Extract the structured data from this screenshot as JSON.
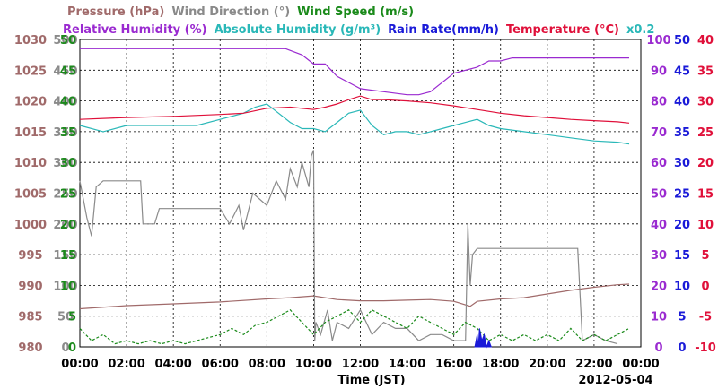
{
  "chart_data": {
    "type": "line",
    "header": {
      "line1": [
        {
          "text": "Pressure (hPa)",
          "color": "#a06a6a"
        },
        {
          "text": "Wind Direction (°)",
          "color": "#8a8a8a"
        },
        {
          "text": "Wind Speed (m/s)",
          "color": "#1a8a1a"
        }
      ],
      "line2": [
        {
          "text": "Relative Humidity (%)",
          "color": "#9a2ad0"
        },
        {
          "text": "Absolute Humidity (g/m³)",
          "color": "#2ab8b8"
        },
        {
          "text": "Rain Rate(mm/h)",
          "color": "#1a1ad8"
        },
        {
          "text": "Temperature (°C)",
          "color": "#e0103a"
        },
        {
          "text": "x0.2",
          "color": "#2ab8b8"
        }
      ]
    },
    "xlabel": "Time (JST)",
    "date": "2012-05-04",
    "x_ticks": [
      "00:00",
      "02:00",
      "04:00",
      "06:00",
      "08:00",
      "10:00",
      "12:00",
      "14:00",
      "16:00",
      "18:00",
      "20:00",
      "22:00",
      "00:00"
    ],
    "x_range_hours": [
      0,
      24
    ],
    "grid": true,
    "axes": {
      "pressure": {
        "color": "#a06a6a",
        "range": [
          980,
          1030
        ],
        "ticks": [
          "1030",
          "1025",
          "1020",
          "1015",
          "1010",
          "1005",
          "1000",
          "995",
          "990",
          "985",
          "980"
        ]
      },
      "wind_dir": {
        "color": "#8a8a8a",
        "range": [
          0,
          500
        ],
        "ticks": [
          "500",
          "450",
          "400",
          "350",
          "300",
          "250",
          "200",
          "150",
          "100",
          "50",
          "0"
        ]
      },
      "wind_speed": {
        "color": "#1a8a1a",
        "range": [
          0,
          50
        ],
        "ticks": [
          "50",
          "45",
          "40",
          "35",
          "30",
          "25",
          "20",
          "15",
          "10",
          "5",
          "0"
        ]
      },
      "rh": {
        "color": "#9a2ad0",
        "range": [
          0,
          100
        ],
        "ticks": [
          "100",
          "90",
          "80",
          "70",
          "60",
          "50",
          "40",
          "30",
          "20",
          "10",
          "0"
        ]
      },
      "rain": {
        "color": "#1a1ad8",
        "range": [
          0,
          50
        ],
        "ticks": [
          "50",
          "45",
          "40",
          "35",
          "30",
          "25",
          "20",
          "15",
          "10",
          "5",
          "0"
        ]
      },
      "temp": {
        "color": "#e0103a",
        "range": [
          -10,
          40
        ],
        "ticks": [
          "40",
          "35",
          "30",
          "25",
          "20",
          "15",
          "10",
          "5",
          "0",
          "-5",
          "-10"
        ]
      }
    },
    "series": [
      {
        "name": "Relative Humidity",
        "axis": "rh",
        "color": "#9a2ad0",
        "x": [
          0,
          8.8,
          9.5,
          10,
          10.5,
          11,
          11.5,
          12,
          13,
          14,
          14.5,
          15,
          16,
          17,
          17.5,
          18,
          18.5,
          19,
          20,
          21,
          22,
          23.5
        ],
        "y": [
          97,
          97,
          95,
          92,
          92,
          88,
          86,
          84,
          83,
          82,
          82,
          83,
          89,
          91,
          93,
          93,
          94,
          94,
          94,
          94,
          94,
          94
        ]
      },
      {
        "name": "Absolute Humidity",
        "axis": "wind_speed",
        "color": "#2ab8b8",
        "x": [
          0,
          1,
          2,
          3,
          4,
          5,
          6,
          7,
          7.5,
          8,
          8.5,
          9,
          9.5,
          10,
          10.5,
          11,
          11.5,
          12,
          12.5,
          13,
          13.5,
          14,
          14.5,
          15,
          15.5,
          16,
          16.5,
          17,
          17.5,
          18,
          19,
          20,
          21,
          22,
          23,
          23.5
        ],
        "y": [
          36,
          35,
          36,
          36,
          36,
          36,
          37,
          38,
          39,
          39.5,
          38,
          36.5,
          35.5,
          35.5,
          35,
          36.5,
          38,
          38.5,
          36,
          34.5,
          35,
          35,
          34.5,
          35,
          35.5,
          36,
          36.5,
          37,
          36,
          35.5,
          35,
          34.5,
          34,
          33.5,
          33.3,
          33
        ]
      },
      {
        "name": "Temperature",
        "axis": "temp",
        "color": "#e0103a",
        "x": [
          0,
          2,
          4,
          6,
          7,
          8,
          9,
          10,
          10.5,
          11,
          11.5,
          12,
          12.5,
          13,
          14,
          15,
          16,
          17,
          18,
          19,
          20,
          21,
          22,
          23,
          23.5
        ],
        "y": [
          27,
          27.3,
          27.5,
          27.8,
          28,
          28.8,
          29,
          28.6,
          29,
          29.5,
          30.2,
          30.8,
          30.2,
          30.2,
          30,
          29.7,
          29.2,
          28.6,
          28,
          27.6,
          27.3,
          27,
          26.8,
          26.6,
          26.4
        ]
      },
      {
        "name": "Pressure",
        "axis": "pressure",
        "color": "#a06a6a",
        "x": [
          0,
          2,
          4,
          6,
          8,
          9,
          10,
          11,
          12,
          13,
          14,
          15,
          16,
          16.7,
          17,
          18,
          19,
          20,
          21,
          22,
          23,
          23.5
        ],
        "y": [
          986.2,
          986.7,
          987,
          987.3,
          987.8,
          988,
          988.3,
          987.7,
          987.5,
          987.5,
          987.6,
          987.7,
          987.4,
          986.6,
          987.4,
          987.8,
          988,
          988.6,
          989.2,
          989.7,
          990.1,
          990.2
        ]
      },
      {
        "name": "Wind Direction",
        "axis": "wind_dir",
        "color": "#8a8a8a",
        "x": [
          0,
          0.3,
          0.5,
          0.7,
          1,
          2.6,
          2.7,
          3.2,
          3.4,
          5,
          6,
          6.4,
          6.8,
          7,
          7.4,
          8,
          8.4,
          8.8,
          9,
          9.3,
          9.5,
          9.8,
          9.9,
          10,
          10.05,
          10.1,
          10.3,
          10.6,
          10.8,
          11,
          11.5,
          12,
          12.5,
          13,
          13.5,
          14,
          14.5,
          15,
          15.5,
          16,
          16.5,
          16.6,
          16.7,
          16.8,
          17,
          17.5,
          18,
          19,
          20,
          20.5,
          21,
          21.3,
          21.5,
          22,
          22.5,
          23
        ],
        "y": [
          270,
          210,
          180,
          260,
          270,
          270,
          200,
          200,
          225,
          225,
          225,
          200,
          230,
          190,
          250,
          230,
          270,
          240,
          290,
          260,
          300,
          260,
          310,
          320,
          10,
          40,
          20,
          60,
          10,
          40,
          30,
          60,
          20,
          40,
          30,
          30,
          10,
          20,
          20,
          10,
          10,
          200,
          100,
          150,
          160,
          160,
          160,
          160,
          160,
          160,
          160,
          160,
          10,
          20,
          10,
          5
        ]
      },
      {
        "name": "Wind Speed",
        "axis": "wind_speed",
        "color": "#1a8a1a",
        "x": [
          0,
          0.5,
          1,
          1.5,
          2,
          2.5,
          3,
          3.5,
          4,
          4.5,
          5,
          5.5,
          6,
          6.5,
          7,
          7.5,
          8,
          8.5,
          9,
          9.5,
          10,
          10.5,
          11,
          11.5,
          12,
          12.5,
          13,
          13.5,
          14,
          14.5,
          15,
          15.5,
          16,
          16.5,
          17,
          17.5,
          18,
          18.5,
          19,
          19.5,
          20,
          20.5,
          21,
          21.5,
          22,
          22.5,
          23,
          23.5
        ],
        "y": [
          3,
          1,
          2,
          0.5,
          1,
          0.5,
          1,
          0.5,
          1,
          0.5,
          1,
          1.5,
          2,
          3,
          2,
          3.5,
          4,
          5,
          6,
          4,
          2,
          4,
          5,
          6,
          4,
          6,
          5,
          4,
          3,
          5,
          4,
          3,
          2,
          4,
          3,
          1,
          2,
          1,
          2,
          1,
          2,
          1,
          3,
          1,
          2,
          1,
          2,
          3
        ]
      },
      {
        "name": "Rain Rate",
        "axis": "rain",
        "color": "#1a1ad8",
        "x": [
          16.9,
          17.0,
          17.05,
          17.1,
          17.2,
          17.3,
          17.4,
          17.5,
          17.6
        ],
        "y": [
          0,
          2,
          0,
          3,
          1,
          2,
          0,
          1,
          0
        ]
      }
    ]
  }
}
